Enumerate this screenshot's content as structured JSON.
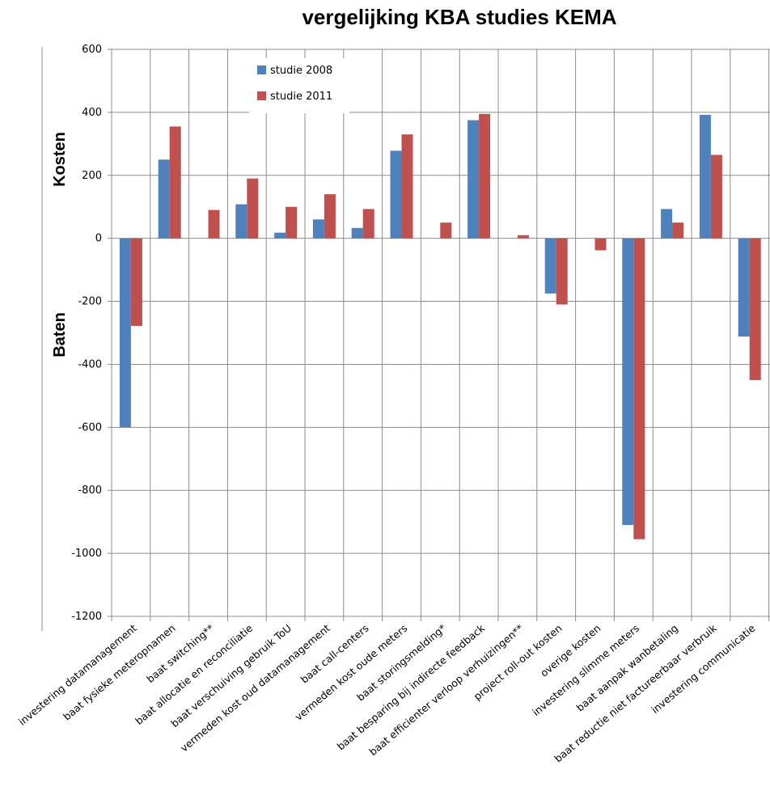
{
  "chart_data": {
    "type": "bar",
    "title": "vergelijking KBA studies KEMA",
    "side_labels": {
      "top": "Kosten",
      "bottom": "Baten"
    },
    "ylim": [
      -1200,
      600
    ],
    "yticks": [
      600,
      400,
      200,
      0,
      -200,
      -400,
      -600,
      -800,
      -1000,
      -1200
    ],
    "grid": true,
    "legend_position": "top-left",
    "categories": [
      "investering datamanagement",
      "baat fysieke meteropnamen",
      "baat switching**",
      "baat allocatie en reconciliatie",
      "baat verschuiving gebruik ToU",
      "vermeden kost oud datamanagement",
      "baat call-centers",
      "vermeden kost oude meters",
      "baat storingsmelding*",
      "baat besparing bij indirecte feedback",
      "baat efficienter verloop verhuizingen**",
      "project roll-out kosten",
      "overige kosten",
      "investering slimme meters",
      "baat aanpak wanbetaling",
      "baat reductie niet factureerbaar verbruik",
      "investering communicatie"
    ],
    "series": [
      {
        "name": "studie 2008",
        "color": "#4F81BD",
        "values": [
          -600,
          250,
          0,
          108,
          18,
          60,
          33,
          278,
          0,
          375,
          0,
          -175,
          0,
          -910,
          93,
          392,
          -312
        ]
      },
      {
        "name": "studie 2011",
        "color": "#C0504D",
        "values": [
          -278,
          355,
          90,
          190,
          100,
          140,
          93,
          330,
          50,
          395,
          10,
          -210,
          -38,
          -955,
          50,
          265,
          -450
        ]
      }
    ]
  }
}
